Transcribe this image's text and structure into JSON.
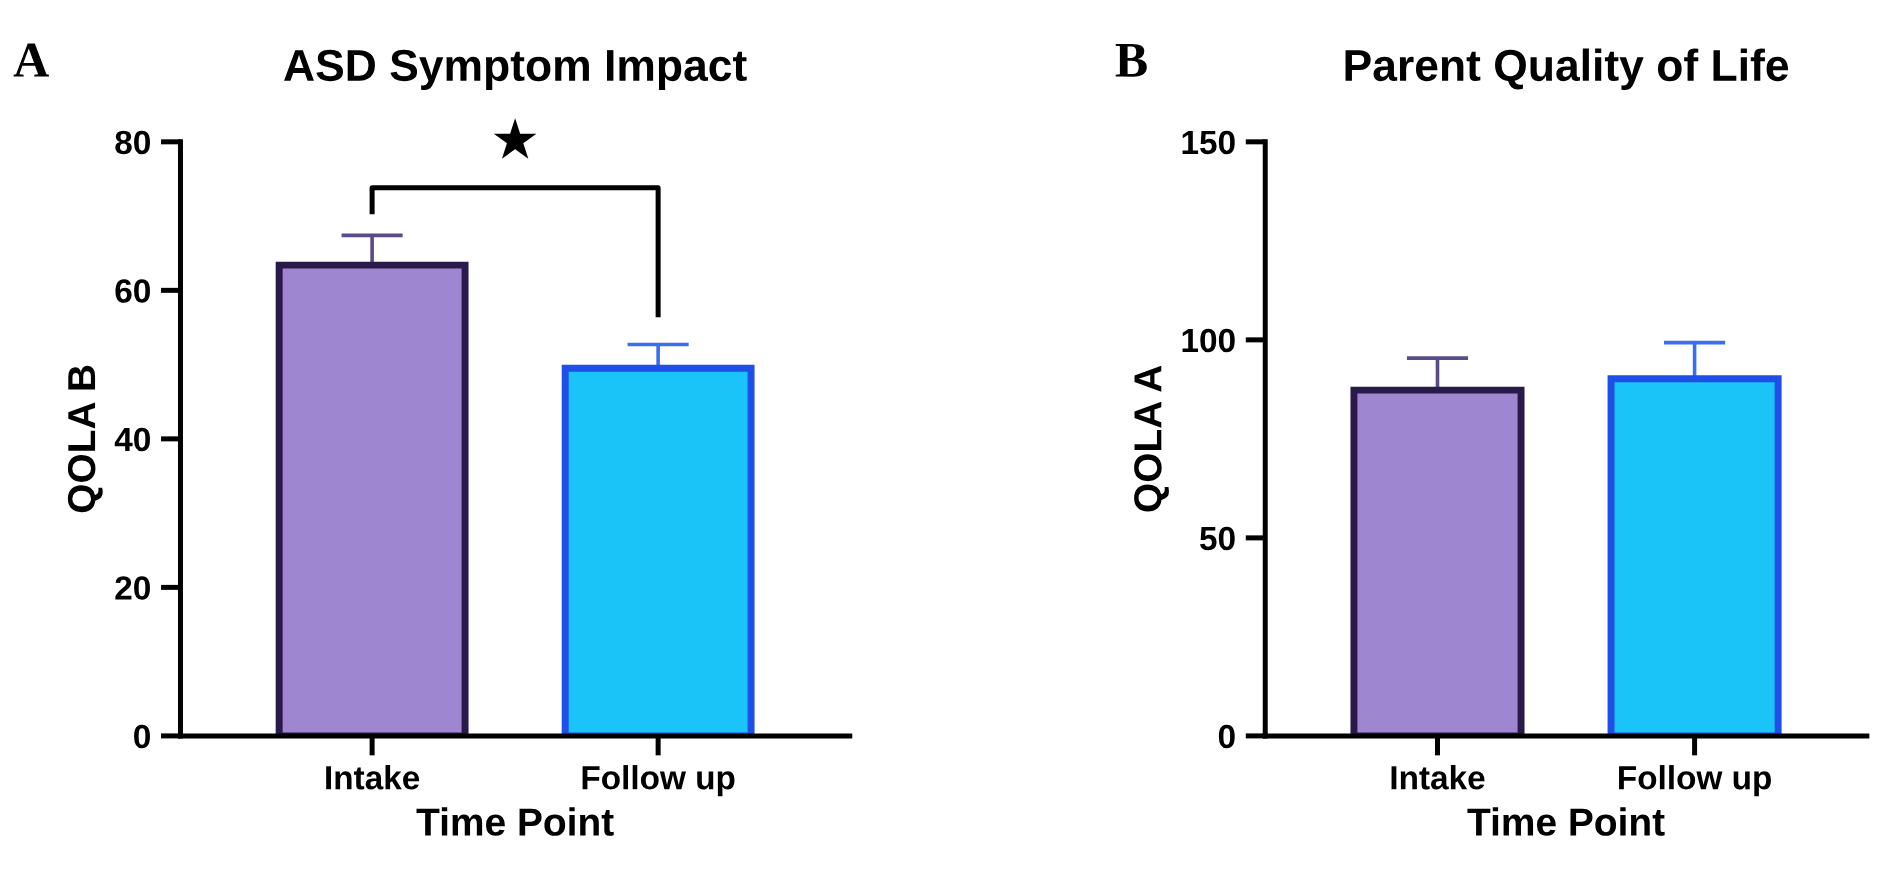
{
  "chart_data": [
    {
      "type": "bar",
      "title": "ASD Symptom Impact",
      "xlabel": "Time Point",
      "ylabel": "QOLA B",
      "categories": [
        "Intake",
        "Follow up"
      ],
      "values": [
        63.4,
        49.5
      ],
      "colors": [
        "#9f86d0",
        "#1ac3f8"
      ],
      "errors": [
        [
          63.4,
          67.4
        ],
        [
          49.5,
          52.7
        ]
      ],
      "ylim": [
        0,
        80
      ],
      "yticks": [
        0,
        20,
        40,
        60,
        80
      ],
      "grid": false,
      "legend": false,
      "annotations": [
        "A",
        "★"
      ]
    },
    {
      "type": "bar",
      "title": "Parent Quality of Life",
      "xlabel": "Time Point",
      "ylabel": "QOLA A",
      "categories": [
        "Intake",
        "Follow up"
      ],
      "values": [
        87.3,
        90.2
      ],
      "colors": [
        "#9f86d0",
        "#1ac3f8"
      ],
      "errors": [
        [
          87.3,
          95.4
        ],
        [
          90.2,
          99.3
        ]
      ],
      "ylim": [
        0,
        150
      ],
      "yticks": [
        0,
        50,
        100,
        150
      ],
      "grid": false,
      "legend": false,
      "annotations": [
        "B"
      ]
    }
  ]
}
